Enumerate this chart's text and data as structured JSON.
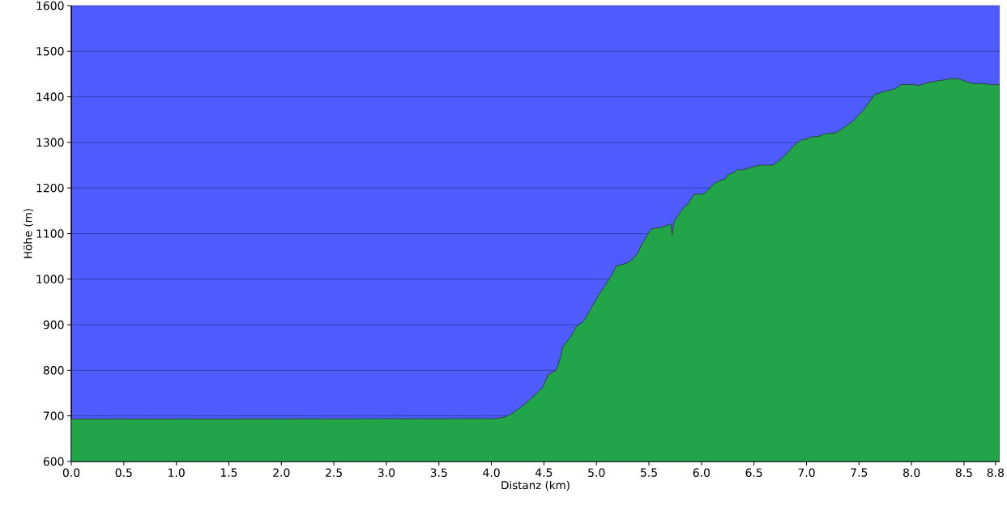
{
  "chart_data": {
    "type": "area",
    "xlabel": "Distanz (km)",
    "ylabel": "Höhe (m)",
    "color": "#22a548",
    "x": [
      0,
      4.05,
      4.12,
      4.19,
      4.31,
      4.41,
      4.49,
      4.54,
      4.62,
      4.66,
      4.68,
      4.75,
      4.81,
      4.88,
      4.95,
      5.01,
      5.08,
      5.15,
      5.19,
      5.29,
      5.34,
      5.39,
      5.44,
      5.52,
      5.62,
      5.71,
      5.72,
      5.74,
      5.82,
      5.87,
      5.93,
      6.02,
      6.06,
      6.12,
      6.18,
      6.23,
      6.25,
      6.32,
      6.34,
      6.39,
      6.47,
      6.55,
      6.68,
      6.73,
      6.81,
      6.88,
      6.96,
      6.99,
      7.04,
      7.11,
      7.18,
      7.28,
      7.36,
      7.44,
      7.5,
      7.55,
      7.6,
      7.65,
      7.73,
      7.85,
      7.9,
      8.01,
      8.07,
      8.14,
      8.22,
      8.31,
      8.39,
      8.44,
      8.53,
      8.59,
      8.68,
      8.76,
      8.84
    ],
    "values": [
      693,
      694,
      697,
      704,
      724,
      745,
      763,
      790,
      801,
      831,
      852,
      872,
      896,
      908,
      937,
      961,
      985,
      1011,
      1029,
      1035,
      1043,
      1056,
      1080,
      1110,
      1114,
      1121,
      1097,
      1127,
      1154,
      1165,
      1186,
      1187,
      1195,
      1210,
      1217,
      1220,
      1229,
      1235,
      1241,
      1239,
      1245,
      1250,
      1250,
      1258,
      1275,
      1293,
      1307,
      1306,
      1312,
      1313,
      1319,
      1321,
      1333,
      1346,
      1361,
      1373,
      1390,
      1405,
      1411,
      1418,
      1427,
      1427,
      1425,
      1430,
      1434,
      1437,
      1440,
      1440,
      1433,
      1429,
      1429,
      1427,
      1427
    ],
    "xlim": [
      0,
      8.84
    ],
    "ylim": [
      600,
      1600
    ],
    "xticks": [
      {
        "value": 0,
        "label": "0.0"
      },
      0.5,
      {
        "value": 1,
        "label": "1.0"
      },
      1.5,
      {
        "value": 2,
        "label": "2.0"
      },
      2.5,
      {
        "value": 3,
        "label": "3.0"
      },
      3.5,
      {
        "value": 4,
        "label": "4.0"
      },
      4.5,
      {
        "value": 5,
        "label": "5.0"
      },
      5.5,
      {
        "value": 6,
        "label": "6.0"
      },
      6.5,
      {
        "value": 7,
        "label": "7.0"
      },
      7.5,
      {
        "value": 8,
        "label": "8.0"
      },
      8.5,
      8.8
    ],
    "yticks": [
      600,
      700,
      800,
      900,
      1000,
      1100,
      1200,
      1300,
      1400,
      1500,
      1600
    ],
    "grid": "y"
  }
}
